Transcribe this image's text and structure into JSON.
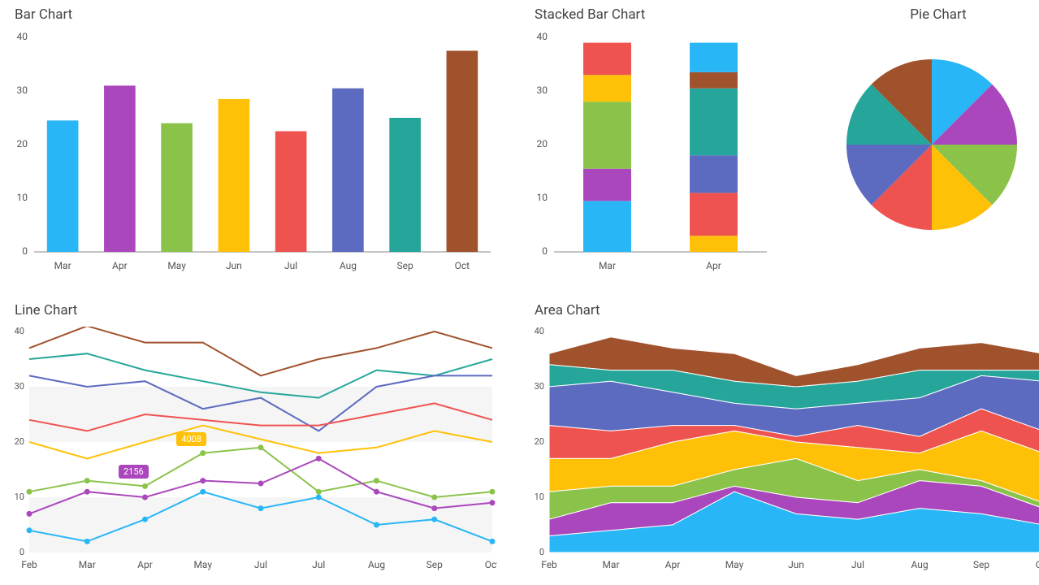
{
  "colors": {
    "text": "#555555",
    "title": "#444444",
    "axis": "#888888",
    "grid": "#eeeeee",
    "background": "#ffffff"
  },
  "palette8": [
    "#29b6f6",
    "#ab47bc",
    "#8bc34a",
    "#ffc107",
    "#ef5350",
    "#5c6bc0",
    "#26a69a",
    "#a0522d"
  ],
  "bar_chart": {
    "title": "Bar Chart",
    "type": "bar",
    "categories": [
      "Mar",
      "Apr",
      "May",
      "Jun",
      "Jul",
      "Aug",
      "Sep",
      "Oct"
    ],
    "values": [
      24.5,
      31,
      24,
      28.5,
      22.5,
      30.5,
      25,
      37.5
    ],
    "colors": [
      "#29b6f6",
      "#ab47bc",
      "#8bc34a",
      "#ffc107",
      "#ef5350",
      "#5c6bc0",
      "#26a69a",
      "#a0522d"
    ],
    "ylim": [
      0,
      40
    ],
    "ytick_step": 10,
    "bar_width": 0.55,
    "title_fontsize": 17,
    "label_fontsize": 12
  },
  "stacked_chart": {
    "title": "Stacked Bar Chart",
    "type": "stacked-bar",
    "categories": [
      "Mar",
      "Apr"
    ],
    "series": [
      {
        "color": "#29b6f6",
        "values": [
          9.5,
          0
        ]
      },
      {
        "color": "#ab47bc",
        "values": [
          6,
          0
        ]
      },
      {
        "color": "#8bc34a",
        "values": [
          12.5,
          0
        ]
      },
      {
        "color": "#ffc107",
        "values": [
          5,
          3
        ]
      },
      {
        "color": "#ef5350",
        "values": [
          6,
          8
        ]
      },
      {
        "color": "#5c6bc0",
        "values": [
          0,
          7
        ]
      },
      {
        "color": "#26a69a",
        "values": [
          0,
          12.5
        ]
      },
      {
        "color": "#a0522d",
        "values": [
          0,
          3
        ]
      },
      {
        "color": "#29b6f6",
        "values": [
          0,
          5.5
        ]
      }
    ],
    "ylim": [
      0,
      40
    ],
    "ytick_step": 10,
    "bar_width": 0.45,
    "title_fontsize": 17,
    "label_fontsize": 12
  },
  "pie_chart": {
    "title": "Pie Chart",
    "type": "pie",
    "slices": [
      {
        "color": "#29b6f6",
        "value": 12.5
      },
      {
        "color": "#ab47bc",
        "value": 12.5
      },
      {
        "color": "#8bc34a",
        "value": 12.5
      },
      {
        "color": "#ffc107",
        "value": 12.5
      },
      {
        "color": "#ef5350",
        "value": 12.5
      },
      {
        "color": "#5c6bc0",
        "value": 12.5
      },
      {
        "color": "#26a69a",
        "value": 12.5
      },
      {
        "color": "#a0522d",
        "value": 12.5
      }
    ],
    "start_angle_deg": -90,
    "title_fontsize": 17
  },
  "line_chart": {
    "title": "Line Chart",
    "type": "line",
    "categories": [
      "Feb",
      "Mar",
      "Apr",
      "May",
      "Jul",
      "Jul",
      "Aug",
      "Sep",
      "Oct"
    ],
    "x_label_indices": [
      0,
      1,
      2,
      3,
      4,
      5,
      6,
      7,
      8
    ],
    "ylim": [
      0,
      40
    ],
    "ytick_step": 10,
    "grid_bands": true,
    "marker_radius": 3.5,
    "line_width": 2,
    "series": [
      {
        "color": "#a0522d",
        "values": [
          37,
          41,
          38,
          38,
          32,
          35,
          37,
          40,
          37
        ]
      },
      {
        "color": "#26a69a",
        "values": [
          35,
          36,
          33,
          31,
          29,
          28,
          33,
          32,
          35
        ]
      },
      {
        "color": "#5c6bc0",
        "values": [
          32,
          30,
          31,
          26,
          28,
          22,
          30,
          32,
          32
        ]
      },
      {
        "color": "#ef5350",
        "values": [
          24,
          22,
          25,
          24,
          23,
          23,
          25,
          27,
          24
        ]
      },
      {
        "color": "#ffc107",
        "values": [
          20,
          17,
          20,
          23,
          20.5,
          18,
          19,
          22,
          20
        ]
      },
      {
        "color": "#8bc34a",
        "values": [
          11,
          13,
          12,
          18,
          19,
          11,
          13,
          10,
          11
        ]
      },
      {
        "color": "#ab47bc",
        "values": [
          7,
          11,
          10,
          13,
          12.5,
          17,
          11,
          8,
          9
        ]
      },
      {
        "color": "#29b6f6",
        "values": [
          4,
          2,
          6,
          11,
          8,
          10,
          5,
          6,
          2
        ]
      }
    ],
    "markers_series_index": [
      7,
      6,
      5
    ],
    "annotations": [
      {
        "text": "2156",
        "x_index": 1.6,
        "y": 14.5,
        "bg": "#ab47bc"
      },
      {
        "text": "4008",
        "x_index": 2.6,
        "y": 20.5,
        "bg": "#ffc107"
      }
    ],
    "title_fontsize": 17,
    "label_fontsize": 12
  },
  "area_chart": {
    "title": "Area Chart",
    "type": "area",
    "categories": [
      "Feb",
      "Mar",
      "Apr",
      "May",
      "Jun",
      "Jul",
      "Aug",
      "Sep",
      "Oct"
    ],
    "ylim": [
      0,
      40
    ],
    "ytick_step": 10,
    "stroke": "#ffffff",
    "stroke_width": 1,
    "series": [
      {
        "color": "#29b6f6",
        "values": [
          3,
          4,
          5,
          11,
          7,
          6,
          8,
          7,
          5
        ]
      },
      {
        "color": "#ab47bc",
        "values": [
          6,
          9,
          9,
          12,
          10,
          9,
          13,
          12,
          8
        ]
      },
      {
        "color": "#8bc34a",
        "values": [
          11,
          12,
          12,
          15,
          17,
          13,
          15,
          13,
          9
        ]
      },
      {
        "color": "#ffc107",
        "values": [
          17,
          17,
          20,
          22,
          20,
          19,
          18,
          22,
          18
        ]
      },
      {
        "color": "#ef5350",
        "values": [
          23,
          22,
          23,
          23,
          21,
          23,
          21,
          26,
          22
        ]
      },
      {
        "color": "#5c6bc0",
        "values": [
          30,
          31,
          29,
          27,
          26,
          27,
          28,
          32,
          31
        ]
      },
      {
        "color": "#26a69a",
        "values": [
          34,
          33,
          33,
          31,
          30,
          31,
          33,
          33,
          33
        ]
      },
      {
        "color": "#a0522d",
        "values": [
          36,
          39,
          37,
          36,
          32,
          34,
          37,
          38,
          36
        ]
      }
    ],
    "title_fontsize": 17,
    "label_fontsize": 12
  }
}
